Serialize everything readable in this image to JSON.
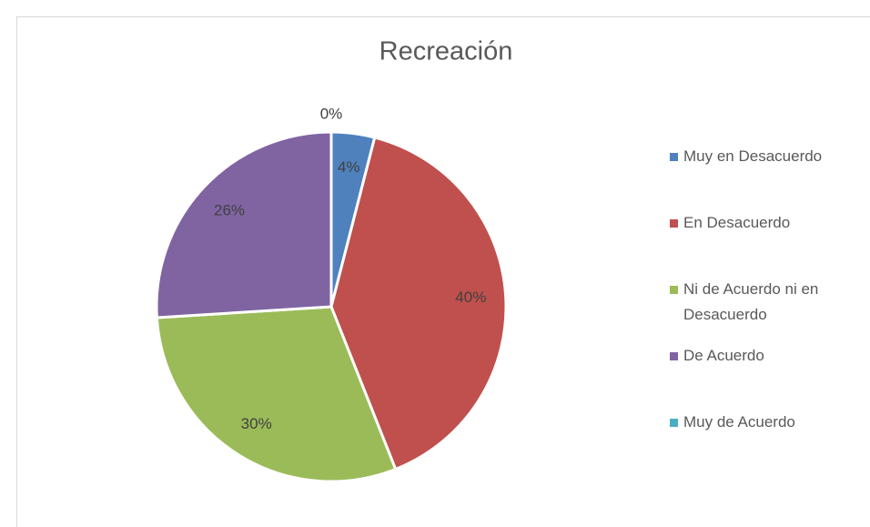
{
  "chart_data": {
    "type": "pie",
    "title": "Recreación",
    "categories": [
      "Muy en Desacuerdo",
      "En Desacuerdo",
      "Ni de Acuerdo ni en Desacuerdo",
      "De Acuerdo",
      "Muy de Acuerdo"
    ],
    "values": [
      4,
      40,
      30,
      26,
      0
    ],
    "value_labels": [
      "4%",
      "40%",
      "30%",
      "26%",
      "0%"
    ],
    "colors": [
      "#4f81bd",
      "#c0504d",
      "#9bbb59",
      "#8064a2",
      "#4bacc6"
    ],
    "legend": "right"
  }
}
